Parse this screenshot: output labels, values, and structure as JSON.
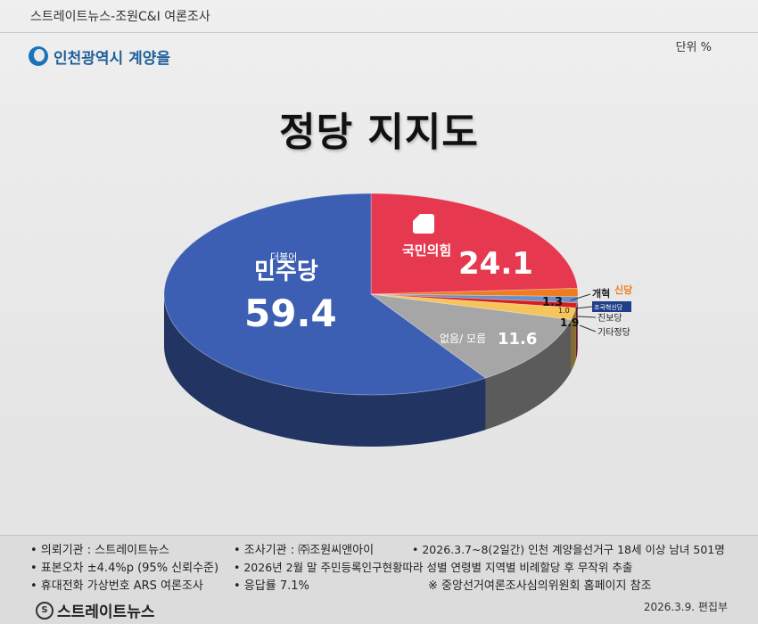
{
  "header": {
    "source": "스트레이트뉴스-조원C&I 여론조사",
    "region": "인천광역시 계양을",
    "unit": "단위 %"
  },
  "title": "정당 지지도",
  "chart_data": {
    "type": "pie",
    "title": "정당 지지도",
    "slices": [
      {
        "name": "더불어민주당",
        "value": 59.4,
        "color": "#3d5fb3"
      },
      {
        "name": "국민의힘",
        "value": 24.1,
        "color": "#e6394f"
      },
      {
        "name": "개혁신당",
        "value": 1.3,
        "color": "#ef7c1f"
      },
      {
        "name": "조국혁신당",
        "value": 1.0,
        "color": "#6b8fc6"
      },
      {
        "name": "진보당",
        "value": 0.8,
        "color": "#d71d1d"
      },
      {
        "name": "기타정당",
        "value": 1.9,
        "color": "#f5c55b"
      },
      {
        "name": "없음/ 모름",
        "value": 11.6,
        "color": "#a6a6a6"
      }
    ]
  },
  "labels": {
    "dem_small": "더불어",
    "dem_big": "민주당",
    "dem_value": "59.4",
    "ppp_name": "국민의힘",
    "ppp_value": "24.1",
    "reform_value": "1.3",
    "reform_name_a": "개혁",
    "reform_name_b": "신당",
    "rebuild_value": "1.0",
    "rebuild_name": "조국혁신당",
    "progressive_name": "진보당",
    "other_value": "1.9",
    "other_name": "기타정당",
    "none_name": "없음/ 모름",
    "none_value": "11.6"
  },
  "footer": {
    "commissioner": "• 의뢰기관 : 스트레이트뉴스",
    "agency": "• 조사기관 : ㈜조원씨앤아이",
    "period": "• 2026.3.7~8(2일간) 인천 계양을선거구 18세 이상 남녀 501명",
    "error": "• 표본오차 ±4.4%p (95% 신뢰수준)",
    "sampling": "• 2026년 2월 말 주민등록인구현황따라 성별 연령별 지역별 비례할당 후 무작위 추출",
    "method": "• 휴대전화 가상번호 ARS 여론조사",
    "response": "• 응답률 7.1%",
    "nec": "※ 중앙선거여론조사심의위원회 홈페이지 참조",
    "brand_icon": "S",
    "brand": "스트레이트뉴스",
    "date": "2026.3.9.  편집부"
  }
}
